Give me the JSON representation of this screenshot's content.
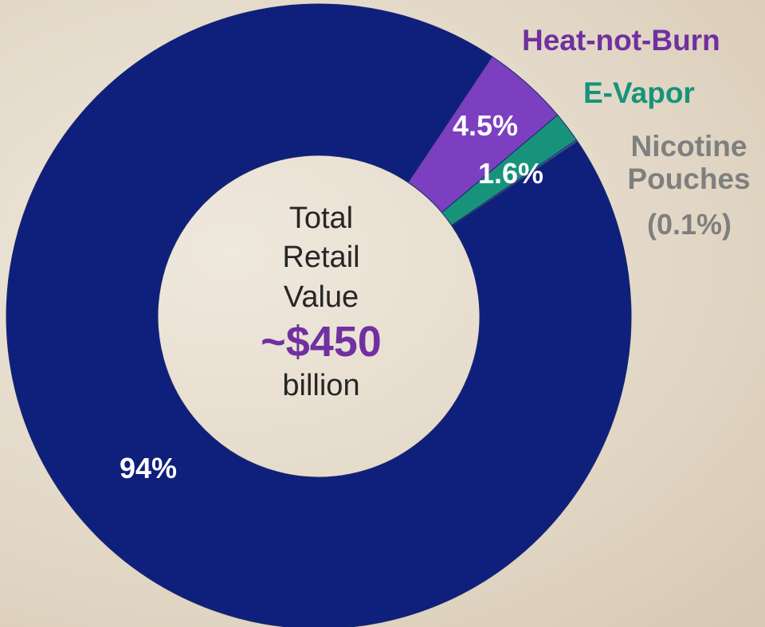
{
  "chart_data": {
    "type": "donut",
    "categories": [
      "Heat-not-Burn",
      "E-Vapor",
      "Nicotine Pouches",
      null
    ],
    "values": [
      4.5,
      1.6,
      0.1,
      94
    ],
    "value_labels": [
      "4.5%",
      "1.6%",
      "(0.1%)",
      "94%"
    ],
    "colors": [
      "#7b3fc0",
      "#17937c",
      "#4a5f9a",
      "#0f1f7c"
    ],
    "label_colors": [
      "#7030a0",
      "#17937c",
      "#7f7f7f",
      null
    ],
    "center_label": "Total Retail Value",
    "center_value": "~$450",
    "center_unit": "billion"
  }
}
